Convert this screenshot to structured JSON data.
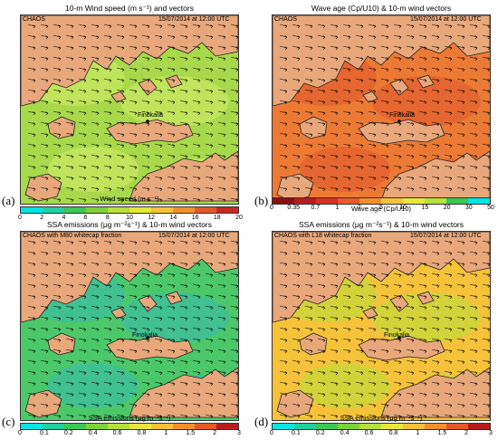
{
  "panels": [
    {
      "letter": "(a)",
      "title": "10-m Wind speed (m s⁻¹) and vectors",
      "model": "CHAOS",
      "datetime": "15/07/2014 at 12:00 UTC",
      "place": "Finokalia",
      "colorbar_title": "Wind speed (m s⁻¹)",
      "ticks": [
        "0",
        "2",
        "4",
        "6",
        "8",
        "10",
        "12",
        "14",
        "16",
        "18",
        "20"
      ],
      "colors": [
        "#00e5e5",
        "#1fd0a0",
        "#3cc855",
        "#7ed23a",
        "#b7e03a",
        "#e8e83a",
        "#f5c23a",
        "#f2902e",
        "#e5582a",
        "#c62822"
      ],
      "sea_color": "#a7d94b",
      "land_color": "#e8a87c"
    },
    {
      "letter": "(b)",
      "title": "Wave age (Cp/U10) & 10-m wind vectors",
      "model": "CHAOS",
      "datetime": "15/07/2014 at 12:00 UTC",
      "place": "Finokalia",
      "colorbar_title": "Wave age (Cp/U10)",
      "ticks": [
        "0",
        "0.35",
        "0.7",
        "1",
        "2",
        "5",
        "10",
        "15",
        "20",
        "30",
        "50"
      ],
      "colors": [
        "#8a0f0f",
        "#b81c1c",
        "#d8301e",
        "#e85a28",
        "#f2902e",
        "#f5c23a",
        "#e8e83a",
        "#b7e03a",
        "#3cc855",
        "#00e5e5"
      ],
      "sea_color": "#ec7a35",
      "land_color": "#e8a87c"
    },
    {
      "letter": "(c)",
      "title": "SSA emissions (μg m⁻²s⁻¹) & 10-m wind vectors",
      "model": "CHAOS with M80 whitecap fraction",
      "datetime": "15/07/2014 at 12:00 UTC",
      "place": "Finokalia",
      "colorbar_title": "SSA emissions (μg m⁻²s⁻¹)",
      "ticks": [
        "0",
        "0.1",
        "0.2",
        "0.4",
        "0.6",
        "0.8",
        "1",
        "1.5",
        "2",
        "3"
      ],
      "colors": [
        "#00e5e5",
        "#1fd0a0",
        "#3cc855",
        "#7ed23a",
        "#b7e03a",
        "#e8e83a",
        "#f5c23a",
        "#f2902e",
        "#e5582a",
        "#b81c1c"
      ],
      "sea_color": "#4cc86a",
      "land_color": "#e8a87c"
    },
    {
      "letter": "(d)",
      "title": "SSA emissions (μg m⁻²s⁻¹) & 10-m wind vectors",
      "model": "CHAOS with L18 whitecap fraction",
      "datetime": "15/07/2014 at 12:00 UTC",
      "place": "Finokalia",
      "colorbar_title": "SSA emissions (μg m⁻²s⁻¹)",
      "ticks": [
        "0",
        "0.1",
        "0.2",
        "0.4",
        "0.6",
        "0.8",
        "1",
        "1.5",
        "2",
        "3"
      ],
      "colors": [
        "#00e5e5",
        "#1fd0a0",
        "#3cc855",
        "#7ed23a",
        "#b7e03a",
        "#e8e83a",
        "#f5c23a",
        "#f2902e",
        "#e5582a",
        "#b81c1c"
      ],
      "sea_color": "#f5c23a",
      "land_color": "#e8a87c"
    }
  ]
}
